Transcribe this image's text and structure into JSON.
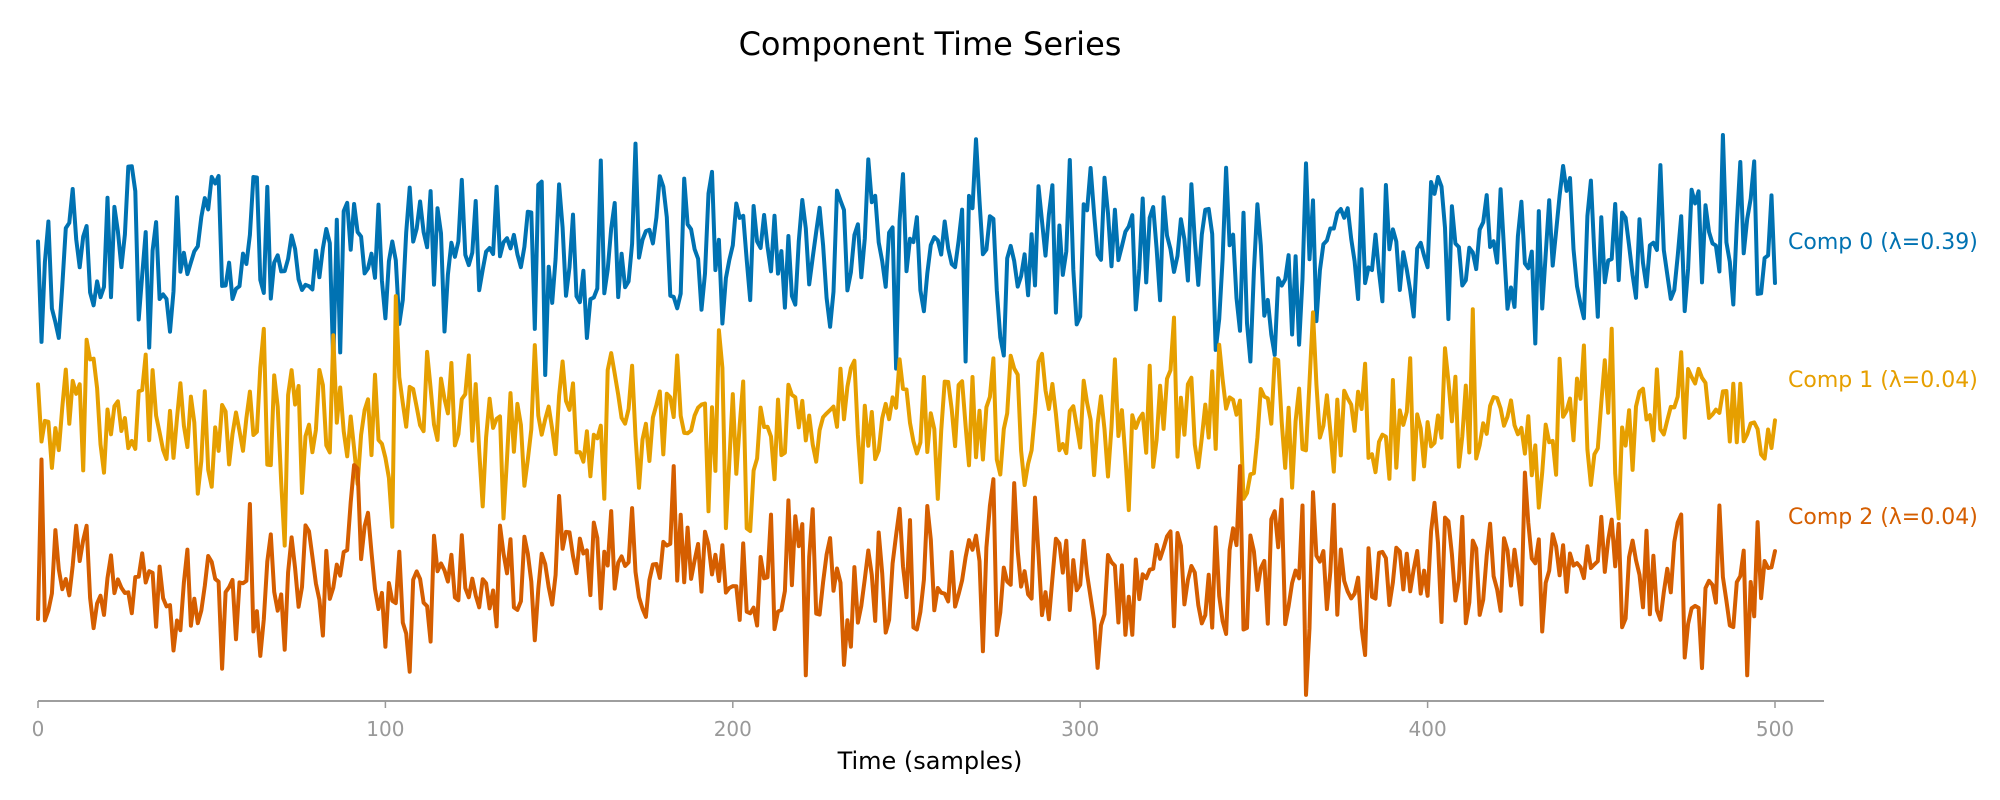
{
  "chart_data": {
    "type": "line",
    "title": "Component Time Series",
    "xlabel": "Time (samples)",
    "ylabel": "",
    "xlim": [
      0,
      514
    ],
    "ylim": [
      -3.85,
      4.9
    ],
    "grid": false,
    "legend": "inline labels at right end of each series",
    "x_ticks": [
      0,
      100,
      200,
      300,
      400,
      500
    ],
    "x_tick_labels": [
      "0",
      "100",
      "200",
      "300",
      "400",
      "500"
    ],
    "n_samples": 501,
    "series": [
      {
        "name": "Comp 0 (λ=0.39)",
        "color": "#0072B2",
        "offset": 2.6,
        "amplitude": 1.0,
        "peaks": [
          [
            270,
            4.3
          ],
          [
            194,
            3.8
          ],
          [
            388,
            3.6
          ],
          [
            88,
            3.2
          ],
          [
            98,
            3.3
          ],
          [
            320,
            3.1
          ],
          [
            432,
            3.2
          ],
          [
            489,
            3.0
          ],
          [
            457,
            3.1
          ]
        ],
        "troughs": [
          [
            1,
            1.2
          ],
          [
            267,
            0.9
          ],
          [
            349,
            0.9
          ],
          [
            356,
            1.0
          ],
          [
            5,
            1.5
          ]
        ],
        "end_value": 2.1
      },
      {
        "name": "Comp 1 (λ=0.04)",
        "color": "#E69F00",
        "offset": 0.0,
        "amplitude": 0.9,
        "peaks": [
          [
            103,
            1.9
          ],
          [
            347,
            1.9
          ],
          [
            413,
            1.7
          ],
          [
            212,
            1.5
          ],
          [
            85,
            1.3
          ],
          [
            453,
            1.4
          ]
        ],
        "troughs": [
          [
            134,
            -1.5
          ],
          [
            163,
            -1.2
          ],
          [
            347,
            -1.2
          ],
          [
            455,
            -1.5
          ],
          [
            212,
            -0.9
          ]
        ],
        "end_value": 0.0
      },
      {
        "name": "Comp 2 (λ=0.04)",
        "color": "#D55E00",
        "offset": -2.4,
        "amplitude": 0.9,
        "peaks": [
          [
            1,
            -0.6
          ],
          [
            346,
            -0.7
          ],
          [
            367,
            -1.1
          ],
          [
            183,
            -0.7
          ],
          [
            275,
            -0.9
          ],
          [
            428,
            -0.8
          ]
        ],
        "troughs": [
          [
            365,
            -4.2
          ],
          [
            53,
            -3.8
          ],
          [
            221,
            -3.9
          ],
          [
            492,
            -3.9
          ],
          [
            347,
            -3.2
          ],
          [
            253,
            -3.2
          ]
        ],
        "end_value": -2.0
      }
    ]
  }
}
